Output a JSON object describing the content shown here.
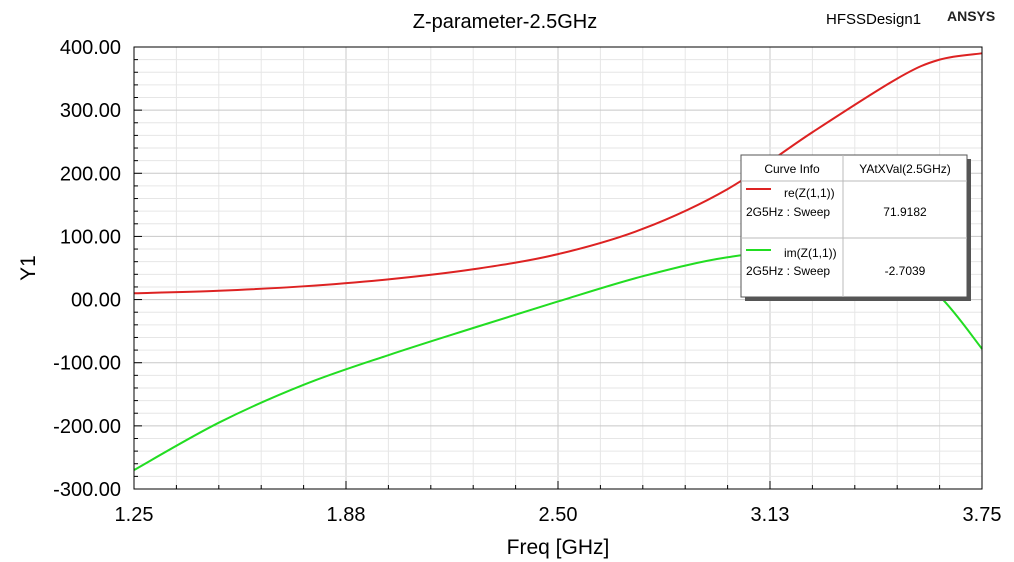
{
  "header": {
    "design_name": "HFSSDesign1",
    "brand": "ANSYS"
  },
  "chart_data": {
    "type": "line",
    "title": "Z-parameter-2.5GHz",
    "xlabel": "Freq [GHz]",
    "ylabel": "Y1",
    "xlim": [
      1.25,
      3.75
    ],
    "ylim": [
      -300,
      400
    ],
    "x_ticks": [
      "1.25",
      "1.88",
      "2.50",
      "3.13",
      "3.75"
    ],
    "y_ticks": [
      "400.00",
      "300.00",
      "200.00",
      "100.00",
      "00.00",
      "-100.00",
      "-200.00",
      "-300.00"
    ],
    "grid": true,
    "x": [
      1.25,
      1.5,
      1.75,
      2.0,
      2.25,
      2.5,
      2.75,
      3.0,
      3.25,
      3.5,
      3.625,
      3.75
    ],
    "series": [
      {
        "name": "re(Z(1,1))",
        "sweep": "2G5Hz : Sweep",
        "color": "#dd2222",
        "values": [
          10,
          14,
          21,
          32,
          48,
          72,
          112,
          175,
          265,
          350,
          380,
          390
        ],
        "y_at_x": "71.9182"
      },
      {
        "name": "im(Z(1,1))",
        "sweep": "2G5Hz : Sweep",
        "color": "#22dd22",
        "values": [
          -270,
          -195,
          -135,
          -88,
          -45,
          -3,
          37,
          67,
          78,
          47,
          5,
          -78
        ],
        "y_at_x": "-2.7039"
      }
    ],
    "legend": {
      "placement": "right",
      "col1_header": "Curve Info",
      "col2_header": "YAtXVal(2.5GHz)"
    }
  }
}
